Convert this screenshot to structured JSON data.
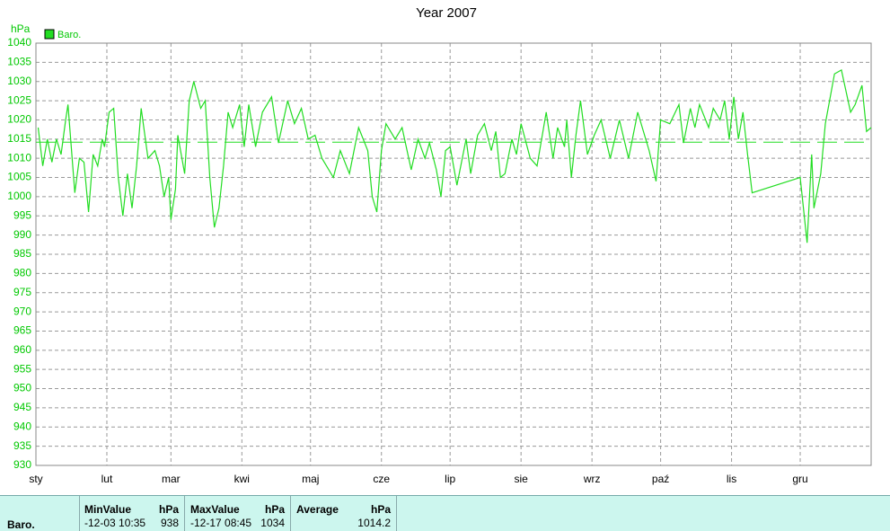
{
  "chart_data": {
    "type": "line",
    "title": "Year 2007",
    "y_label": "hPa",
    "series": [
      {
        "name": "Baro.",
        "color": "#22dd22",
        "x": [
          1,
          3,
          5,
          7,
          9,
          11,
          13,
          14,
          17,
          19,
          21,
          23,
          25,
          27,
          29,
          30,
          32,
          34,
          36,
          38,
          40,
          42,
          44,
          46,
          49,
          52,
          54,
          56,
          58,
          59,
          61,
          62,
          65,
          67,
          69,
          72,
          74,
          76,
          78,
          80,
          82,
          84,
          86,
          89,
          91,
          93,
          96,
          99,
          103,
          106,
          110,
          113,
          116,
          119,
          122,
          125,
          130,
          133,
          137,
          141,
          145,
          147,
          149,
          151,
          153,
          157,
          160,
          164,
          167,
          170,
          172,
          175,
          177,
          179,
          181,
          184,
          188,
          190,
          193,
          196,
          199,
          201,
          203,
          205,
          208,
          210,
          212,
          216,
          219,
          223,
          226,
          228,
          231,
          232,
          234,
          236,
          238,
          241,
          244,
          247,
          251,
          255,
          259,
          263,
          268,
          271,
          273,
          277,
          281,
          283,
          286,
          288,
          290,
          294,
          296,
          299,
          301,
          303,
          305,
          307,
          309,
          311,
          313,
          334,
          337,
          339,
          340,
          343,
          345,
          349,
          352,
          356,
          358,
          361,
          363,
          365
        ],
        "values": [
          1018,
          1008,
          1015,
          1009,
          1015,
          1011,
          1020,
          1024,
          1001,
          1010,
          1009,
          996,
          1011,
          1008,
          1015,
          1013,
          1022,
          1023,
          1005,
          995,
          1006,
          997,
          1008,
          1023,
          1010,
          1012,
          1008,
          1000,
          1005,
          994,
          1002,
          1016,
          1006,
          1025,
          1030,
          1023,
          1025,
          1005,
          992,
          997,
          1008,
          1022,
          1018,
          1024,
          1013,
          1024,
          1013,
          1022,
          1026,
          1014,
          1025,
          1019,
          1023,
          1015,
          1016,
          1010,
          1005,
          1012,
          1006,
          1018,
          1012,
          1000,
          996,
          1012,
          1019,
          1015,
          1018,
          1007,
          1015,
          1010,
          1014,
          1007,
          1000,
          1012,
          1013,
          1003,
          1015,
          1006,
          1016,
          1019,
          1012,
          1017,
          1005,
          1006,
          1015,
          1011,
          1019,
          1010,
          1008,
          1022,
          1010,
          1018,
          1013,
          1020,
          1005,
          1016,
          1025,
          1011,
          1016,
          1020,
          1010,
          1020,
          1010,
          1022,
          1012,
          1004,
          1020,
          1019,
          1024,
          1014,
          1023,
          1018,
          1024,
          1018,
          1023,
          1020,
          1025,
          1015,
          1026,
          1015,
          1022,
          1011,
          1001,
          1005,
          988,
          1011,
          997,
          1006,
          1019,
          1032,
          1033,
          1022,
          1024,
          1029,
          1017,
          1018
        ]
      }
    ],
    "xlim": [
      0,
      365
    ],
    "xticks": [
      {
        "value": 0,
        "label": "sty"
      },
      {
        "value": 31,
        "label": "lut"
      },
      {
        "value": 59,
        "label": "mar"
      },
      {
        "value": 90,
        "label": "kwi"
      },
      {
        "value": 120,
        "label": "maj"
      },
      {
        "value": 151,
        "label": "cze"
      },
      {
        "value": 181,
        "label": "lip"
      },
      {
        "value": 212,
        "label": "sie"
      },
      {
        "value": 243,
        "label": "wrz"
      },
      {
        "value": 273,
        "label": "paź"
      },
      {
        "value": 304,
        "label": "lis"
      },
      {
        "value": 334,
        "label": "gru"
      }
    ],
    "ylim": [
      930,
      1040
    ],
    "yticks": [
      930,
      935,
      940,
      945,
      950,
      955,
      960,
      965,
      970,
      975,
      980,
      985,
      990,
      995,
      1000,
      1005,
      1010,
      1015,
      1020,
      1025,
      1030,
      1035,
      1040
    ],
    "grid": true
  },
  "stats": {
    "name": "Baro.",
    "min": {
      "label": "MinValue",
      "unit": "hPa",
      "time": "-12-03 10:35",
      "value": 938
    },
    "max": {
      "label": "MaxValue",
      "unit": "hPa",
      "time": "-12-17 08:45",
      "value": 1034
    },
    "average": {
      "label": "Average",
      "unit": "hPa",
      "value": 1014.2
    }
  }
}
